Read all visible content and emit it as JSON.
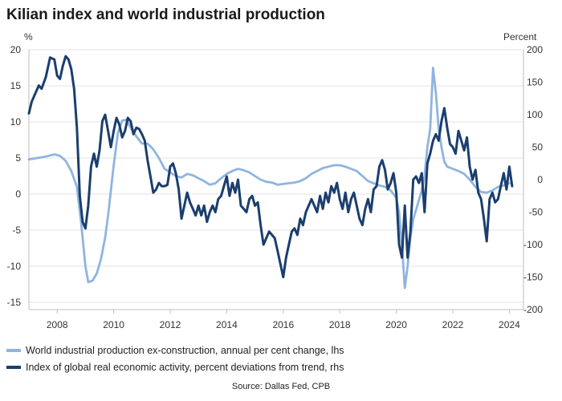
{
  "title": "Kilian index and world industrial production",
  "source": "Source: Dallas Fed, CPB",
  "colors": {
    "ip": "#8fb4e0",
    "kilian": "#1b3e6e",
    "grid": "#e3e3e3"
  },
  "chart_data": {
    "type": "line",
    "title": "Kilian index and world industrial production",
    "y_left": {
      "unit_label": "%",
      "ylim": [
        -16,
        20
      ],
      "ticks": [
        -15,
        -10,
        -5,
        0,
        5,
        10,
        15,
        20
      ]
    },
    "y_right": {
      "unit_label": "Percent",
      "ylim": [
        -200,
        200
      ],
      "ticks": [
        -200,
        -150,
        -100,
        -50,
        0,
        50,
        100,
        150,
        200
      ]
    },
    "x": {
      "range": [
        2007,
        2024.5
      ],
      "ticks": [
        2008,
        2010,
        2012,
        2014,
        2016,
        2018,
        2020,
        2022,
        2024
      ]
    },
    "grid": true,
    "legend_position": "bottom",
    "series": [
      {
        "name": "World industrial production ex-construction, annual per cent change, lhs",
        "axis": "left",
        "points": [
          [
            2007.0,
            4.8
          ],
          [
            2007.3,
            5.0
          ],
          [
            2007.6,
            5.2
          ],
          [
            2007.9,
            5.5
          ],
          [
            2008.1,
            5.3
          ],
          [
            2008.3,
            4.6
          ],
          [
            2008.5,
            3.2
          ],
          [
            2008.7,
            1.0
          ],
          [
            2008.85,
            -4.0
          ],
          [
            2009.0,
            -10.0
          ],
          [
            2009.1,
            -12.2
          ],
          [
            2009.25,
            -12.0
          ],
          [
            2009.4,
            -11.0
          ],
          [
            2009.55,
            -9.0
          ],
          [
            2009.7,
            -6.0
          ],
          [
            2009.8,
            -3.0
          ],
          [
            2009.9,
            0.5
          ],
          [
            2010.0,
            4.0
          ],
          [
            2010.15,
            8.5
          ],
          [
            2010.3,
            10.2
          ],
          [
            2010.45,
            10.3
          ],
          [
            2010.6,
            9.2
          ],
          [
            2010.8,
            8.0
          ],
          [
            2011.0,
            7.0
          ],
          [
            2011.2,
            7.0
          ],
          [
            2011.4,
            6.2
          ],
          [
            2011.6,
            5.0
          ],
          [
            2011.8,
            3.5
          ],
          [
            2012.0,
            3.0
          ],
          [
            2012.2,
            2.5
          ],
          [
            2012.4,
            2.3
          ],
          [
            2012.6,
            2.8
          ],
          [
            2012.8,
            2.6
          ],
          [
            2013.0,
            2.2
          ],
          [
            2013.2,
            1.8
          ],
          [
            2013.4,
            1.3
          ],
          [
            2013.6,
            1.5
          ],
          [
            2013.8,
            2.2
          ],
          [
            2014.0,
            2.8
          ],
          [
            2014.2,
            3.2
          ],
          [
            2014.4,
            3.5
          ],
          [
            2014.6,
            3.3
          ],
          [
            2014.8,
            3.0
          ],
          [
            2015.0,
            2.5
          ],
          [
            2015.2,
            2.0
          ],
          [
            2015.4,
            1.7
          ],
          [
            2015.6,
            1.6
          ],
          [
            2015.8,
            1.3
          ],
          [
            2016.0,
            1.4
          ],
          [
            2016.2,
            1.5
          ],
          [
            2016.4,
            1.6
          ],
          [
            2016.6,
            1.8
          ],
          [
            2016.8,
            2.2
          ],
          [
            2017.0,
            2.8
          ],
          [
            2017.2,
            3.2
          ],
          [
            2017.4,
            3.6
          ],
          [
            2017.6,
            3.8
          ],
          [
            2017.8,
            4.0
          ],
          [
            2018.0,
            4.0
          ],
          [
            2018.2,
            3.8
          ],
          [
            2018.4,
            3.5
          ],
          [
            2018.6,
            3.2
          ],
          [
            2018.8,
            2.5
          ],
          [
            2019.0,
            1.8
          ],
          [
            2019.2,
            1.5
          ],
          [
            2019.4,
            1.2
          ],
          [
            2019.6,
            1.0
          ],
          [
            2019.8,
            0.5
          ],
          [
            2020.0,
            -0.5
          ],
          [
            2020.1,
            -2.5
          ],
          [
            2020.2,
            -7.0
          ],
          [
            2020.3,
            -13.0
          ],
          [
            2020.4,
            -10.0
          ],
          [
            2020.5,
            -6.0
          ],
          [
            2020.6,
            -3.5
          ],
          [
            2020.75,
            -1.5
          ],
          [
            2020.9,
            0.5
          ],
          [
            2021.0,
            2.5
          ],
          [
            2021.1,
            6.5
          ],
          [
            2021.2,
            9.0
          ],
          [
            2021.3,
            17.5
          ],
          [
            2021.4,
            14.0
          ],
          [
            2021.5,
            9.0
          ],
          [
            2021.6,
            6.5
          ],
          [
            2021.7,
            4.5
          ],
          [
            2021.8,
            3.8
          ],
          [
            2022.0,
            3.5
          ],
          [
            2022.2,
            3.2
          ],
          [
            2022.4,
            2.8
          ],
          [
            2022.6,
            2.0
          ],
          [
            2022.8,
            1.0
          ],
          [
            2023.0,
            0.3
          ],
          [
            2023.2,
            0.2
          ],
          [
            2023.4,
            0.5
          ],
          [
            2023.6,
            1.0
          ],
          [
            2023.8,
            1.2
          ],
          [
            2024.0,
            1.5
          ]
        ]
      },
      {
        "name": "Index of global real economic activity, percent deviations from trend, rhs",
        "axis": "right",
        "points": [
          [
            2007.0,
            102
          ],
          [
            2007.1,
            120
          ],
          [
            2007.25,
            135
          ],
          [
            2007.35,
            145
          ],
          [
            2007.45,
            140
          ],
          [
            2007.6,
            158
          ],
          [
            2007.75,
            188
          ],
          [
            2007.9,
            185
          ],
          [
            2008.0,
            160
          ],
          [
            2008.1,
            155
          ],
          [
            2008.2,
            175
          ],
          [
            2008.3,
            190
          ],
          [
            2008.4,
            185
          ],
          [
            2008.5,
            170
          ],
          [
            2008.6,
            140
          ],
          [
            2008.7,
            80
          ],
          [
            2008.8,
            -25
          ],
          [
            2008.9,
            -65
          ],
          [
            2009.0,
            -75
          ],
          [
            2009.1,
            -40
          ],
          [
            2009.2,
            20
          ],
          [
            2009.3,
            40
          ],
          [
            2009.4,
            20
          ],
          [
            2009.5,
            45
          ],
          [
            2009.6,
            90
          ],
          [
            2009.7,
            100
          ],
          [
            2009.8,
            75
          ],
          [
            2009.9,
            50
          ],
          [
            2010.0,
            75
          ],
          [
            2010.1,
            95
          ],
          [
            2010.2,
            85
          ],
          [
            2010.3,
            65
          ],
          [
            2010.4,
            75
          ],
          [
            2010.5,
            95
          ],
          [
            2010.6,
            90
          ],
          [
            2010.7,
            70
          ],
          [
            2010.8,
            80
          ],
          [
            2010.9,
            78
          ],
          [
            2011.0,
            70
          ],
          [
            2011.1,
            60
          ],
          [
            2011.2,
            30
          ],
          [
            2011.3,
            5
          ],
          [
            2011.4,
            -20
          ],
          [
            2011.5,
            -15
          ],
          [
            2011.6,
            -5
          ],
          [
            2011.7,
            -10
          ],
          [
            2011.8,
            -10
          ],
          [
            2011.9,
            -8
          ],
          [
            2012.0,
            20
          ],
          [
            2012.1,
            25
          ],
          [
            2012.2,
            10
          ],
          [
            2012.3,
            -15
          ],
          [
            2012.4,
            -60
          ],
          [
            2012.5,
            -40
          ],
          [
            2012.6,
            -20
          ],
          [
            2012.7,
            -35
          ],
          [
            2012.8,
            -45
          ],
          [
            2012.9,
            -55
          ],
          [
            2013.0,
            -40
          ],
          [
            2013.1,
            -55
          ],
          [
            2013.2,
            -40
          ],
          [
            2013.3,
            -65
          ],
          [
            2013.4,
            -50
          ],
          [
            2013.5,
            -40
          ],
          [
            2013.6,
            -50
          ],
          [
            2013.7,
            -30
          ],
          [
            2013.8,
            -25
          ],
          [
            2013.9,
            -10
          ],
          [
            2014.0,
            5
          ],
          [
            2014.1,
            -25
          ],
          [
            2014.2,
            -5
          ],
          [
            2014.3,
            -20
          ],
          [
            2014.4,
            0
          ],
          [
            2014.5,
            -40
          ],
          [
            2014.6,
            -45
          ],
          [
            2014.7,
            -50
          ],
          [
            2014.8,
            -30
          ],
          [
            2014.9,
            -25
          ],
          [
            2015.0,
            -40
          ],
          [
            2015.1,
            -35
          ],
          [
            2015.2,
            -70
          ],
          [
            2015.3,
            -100
          ],
          [
            2015.4,
            -90
          ],
          [
            2015.5,
            -80
          ],
          [
            2015.6,
            -85
          ],
          [
            2015.7,
            -90
          ],
          [
            2015.8,
            -110
          ],
          [
            2015.9,
            -130
          ],
          [
            2016.0,
            -150
          ],
          [
            2016.1,
            -120
          ],
          [
            2016.2,
            -100
          ],
          [
            2016.3,
            -80
          ],
          [
            2016.4,
            -75
          ],
          [
            2016.5,
            -85
          ],
          [
            2016.6,
            -60
          ],
          [
            2016.7,
            -70
          ],
          [
            2016.8,
            -50
          ],
          [
            2016.9,
            -40
          ],
          [
            2017.0,
            -30
          ],
          [
            2017.1,
            -40
          ],
          [
            2017.2,
            -50
          ],
          [
            2017.3,
            -25
          ],
          [
            2017.4,
            -45
          ],
          [
            2017.5,
            -20
          ],
          [
            2017.6,
            -35
          ],
          [
            2017.7,
            -10
          ],
          [
            2017.8,
            -20
          ],
          [
            2017.9,
            -5
          ],
          [
            2018.0,
            -30
          ],
          [
            2018.1,
            -45
          ],
          [
            2018.2,
            -20
          ],
          [
            2018.3,
            -50
          ],
          [
            2018.4,
            -30
          ],
          [
            2018.5,
            -20
          ],
          [
            2018.6,
            -40
          ],
          [
            2018.7,
            -60
          ],
          [
            2018.8,
            -70
          ],
          [
            2018.9,
            -45
          ],
          [
            2019.0,
            -30
          ],
          [
            2019.1,
            -50
          ],
          [
            2019.2,
            -15
          ],
          [
            2019.3,
            -10
          ],
          [
            2019.4,
            20
          ],
          [
            2019.5,
            30
          ],
          [
            2019.6,
            15
          ],
          [
            2019.7,
            -15
          ],
          [
            2019.8,
            -5
          ],
          [
            2019.9,
            10
          ],
          [
            2020.0,
            -20
          ],
          [
            2020.1,
            -100
          ],
          [
            2020.2,
            -120
          ],
          [
            2020.3,
            -40
          ],
          [
            2020.4,
            -120
          ],
          [
            2020.5,
            -80
          ],
          [
            2020.6,
            0
          ],
          [
            2020.7,
            5
          ],
          [
            2020.8,
            -5
          ],
          [
            2020.9,
            10
          ],
          [
            2021.0,
            -50
          ],
          [
            2021.1,
            25
          ],
          [
            2021.2,
            40
          ],
          [
            2021.3,
            60
          ],
          [
            2021.4,
            70
          ],
          [
            2021.5,
            60
          ],
          [
            2021.6,
            90
          ],
          [
            2021.7,
            110
          ],
          [
            2021.8,
            80
          ],
          [
            2021.9,
            55
          ],
          [
            2022.0,
            50
          ],
          [
            2022.1,
            40
          ],
          [
            2022.2,
            75
          ],
          [
            2022.3,
            60
          ],
          [
            2022.4,
            45
          ],
          [
            2022.5,
            65
          ],
          [
            2022.6,
            20
          ],
          [
            2022.7,
            0
          ],
          [
            2022.8,
            15
          ],
          [
            2022.9,
            -20
          ],
          [
            2023.0,
            -30
          ],
          [
            2023.1,
            -60
          ],
          [
            2023.2,
            -95
          ],
          [
            2023.3,
            -30
          ],
          [
            2023.4,
            -20
          ],
          [
            2023.5,
            -35
          ],
          [
            2023.6,
            -30
          ],
          [
            2023.7,
            -10
          ],
          [
            2023.8,
            10
          ],
          [
            2023.9,
            -15
          ],
          [
            2024.0,
            20
          ],
          [
            2024.1,
            -10
          ]
        ]
      }
    ]
  }
}
